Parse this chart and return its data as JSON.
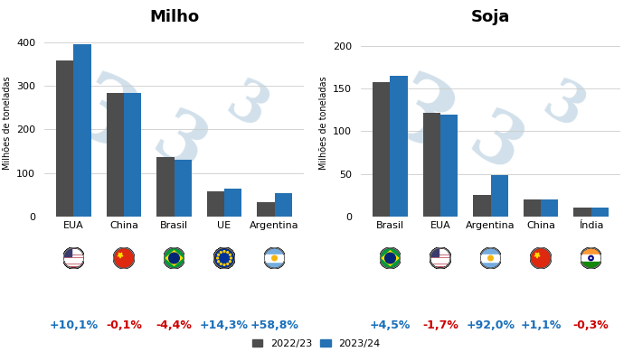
{
  "milho": {
    "title": "Milho",
    "categories": [
      "EUA",
      "China",
      "Brasil",
      "UE",
      "Argentina"
    ],
    "values_2223": [
      358,
      284,
      137,
      57,
      34
    ],
    "values_2324": [
      394,
      284,
      130,
      65,
      54
    ],
    "pct_changes": [
      "+10,1%",
      "-0,1%",
      "-4,4%",
      "+14,3%",
      "+58,8%"
    ],
    "pct_colors": [
      "#1a6fbb",
      "#cc0000",
      "#cc0000",
      "#1a6fbb",
      "#1a6fbb"
    ],
    "ylim": [
      0,
      430
    ],
    "yticks": [
      0,
      100,
      200,
      300,
      400
    ],
    "flag_colors": [
      [
        "#B22234",
        "#FFFFFF",
        "#3C3B6E"
      ],
      [
        "#DE2910",
        "#FFDE00"
      ],
      [
        "#009C3B",
        "#FFDF00",
        "#002776"
      ],
      [
        "#003399",
        "#FFCC00"
      ],
      [
        "#74ACDF",
        "#FFFFFF"
      ]
    ]
  },
  "soja": {
    "title": "Soja",
    "categories": [
      "Brasil",
      "EUA",
      "Argentina",
      "China",
      "Índia"
    ],
    "values_2223": [
      158,
      122,
      25,
      20,
      11
    ],
    "values_2324": [
      165,
      119,
      49,
      20,
      11
    ],
    "pct_changes": [
      "+4,5%",
      "-1,7%",
      "+92,0%",
      "+1,1%",
      "-0,3%"
    ],
    "pct_colors": [
      "#1a6fbb",
      "#cc0000",
      "#1a6fbb",
      "#1a6fbb",
      "#cc0000"
    ],
    "ylim": [
      0,
      220
    ],
    "yticks": [
      0,
      50,
      100,
      150,
      200
    ],
    "flag_colors": [
      [
        "#009C3B",
        "#FFDF00",
        "#002776"
      ],
      [
        "#B22234",
        "#FFFFFF",
        "#3C3B6E"
      ],
      [
        "#74ACDF",
        "#FFFFFF"
      ],
      [
        "#DE2910",
        "#FFDE00"
      ],
      [
        "#FF9933",
        "#FFFFFF",
        "#138808",
        "#000080"
      ]
    ]
  },
  "color_2223": "#4d4d4d",
  "color_2324": "#2471b3",
  "ylabel": "Milhões de toneladas",
  "legend_labels": [
    "2022/23",
    "2023/24"
  ],
  "bar_width": 0.35,
  "watermark_color": "#ccdde8",
  "bg_color": "#ffffff",
  "title_fontsize": 13,
  "ylabel_fontsize": 7,
  "tick_fontsize": 8,
  "pct_fontsize": 9,
  "legend_fontsize": 8
}
